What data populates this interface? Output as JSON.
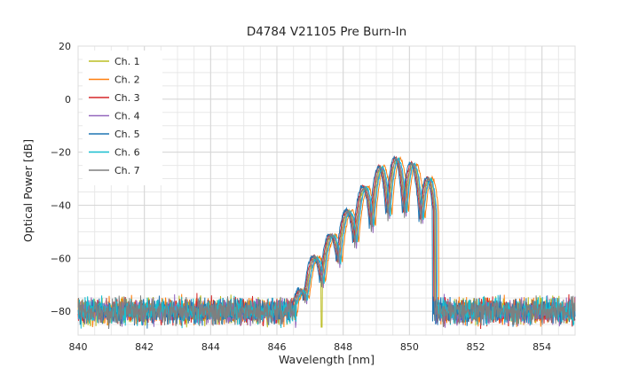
{
  "chart_data": {
    "type": "line",
    "title": "D4784 V21105 Pre Burn-In",
    "xlabel": "Wavelength [nm]",
    "ylabel": "Optical Power [dB]",
    "xlim": [
      840,
      855
    ],
    "ylim": [
      -89,
      20
    ],
    "x_ticks": {
      "values": [
        840,
        842,
        844,
        846,
        848,
        850,
        852,
        854
      ],
      "labels": [
        "840",
        "842",
        "844",
        "846",
        "848",
        "850",
        "852",
        "854"
      ]
    },
    "y_ticks": {
      "values": [
        20,
        0,
        -20,
        -40,
        -60,
        -80
      ],
      "labels": [
        "20",
        "0",
        "−20",
        "−40",
        "−60",
        "−80"
      ]
    },
    "grid": {
      "x_minor_step": 0.5,
      "y_minor_step": 5,
      "major_color": "#d6d6d6",
      "minor_color": "#e8e8e8",
      "border_color": "#dcdcdc"
    },
    "noise_floor_db": -80,
    "noise_spread_db": 7,
    "band": {
      "start_nm": 846.55,
      "cutoff_nm": 850.78,
      "fringe_period_nm": 0.5,
      "fringe_peak_nm": 849.62,
      "envelope_top": [
        [
          846.55,
          -77
        ],
        [
          847.0,
          -62
        ],
        [
          847.55,
          -53
        ],
        [
          848.1,
          -43
        ],
        [
          848.65,
          -33
        ],
        [
          849.15,
          -25.5
        ],
        [
          849.6,
          -22.5
        ],
        [
          850.0,
          -23.5
        ],
        [
          850.35,
          -27
        ],
        [
          850.6,
          -30
        ],
        [
          850.78,
          -34
        ]
      ],
      "envelope_bottom": [
        [
          846.55,
          -80
        ],
        [
          847.0,
          -75
        ],
        [
          847.55,
          -68
        ],
        [
          848.1,
          -59
        ],
        [
          848.65,
          -52
        ],
        [
          849.15,
          -47
        ],
        [
          849.6,
          -44
        ],
        [
          850.0,
          -45
        ],
        [
          850.35,
          -47
        ],
        [
          850.6,
          -50
        ],
        [
          850.78,
          -60
        ]
      ]
    },
    "series": [
      {
        "name": "Ch. 1",
        "color": "#bcbd22",
        "wavelength_shift_nm": 0.0,
        "peak_offset_db": 0.0,
        "deep_dip_nm": 847.35
      },
      {
        "name": "Ch. 2",
        "color": "#ff7f0e",
        "wavelength_shift_nm": 0.1,
        "peak_offset_db": 0.5
      },
      {
        "name": "Ch. 3",
        "color": "#d62728",
        "wavelength_shift_nm": -0.05,
        "peak_offset_db": 0.8
      },
      {
        "name": "Ch. 4",
        "color": "#9467bd",
        "wavelength_shift_nm": 0.03,
        "peak_offset_db": -0.5
      },
      {
        "name": "Ch. 5",
        "color": "#1f77b4",
        "wavelength_shift_nm": -0.08,
        "peak_offset_db": 1.0
      },
      {
        "name": "Ch. 6",
        "color": "#17becf",
        "wavelength_shift_nm": 0.05,
        "peak_offset_db": -0.3
      },
      {
        "name": "Ch. 7",
        "color": "#7f7f7f",
        "wavelength_shift_nm": -0.02,
        "peak_offset_db": 0.0
      }
    ],
    "legend": {
      "position": "upper-left",
      "entries": [
        "Ch. 1",
        "Ch. 2",
        "Ch. 3",
        "Ch. 4",
        "Ch. 5",
        "Ch. 6",
        "Ch. 7"
      ]
    }
  }
}
